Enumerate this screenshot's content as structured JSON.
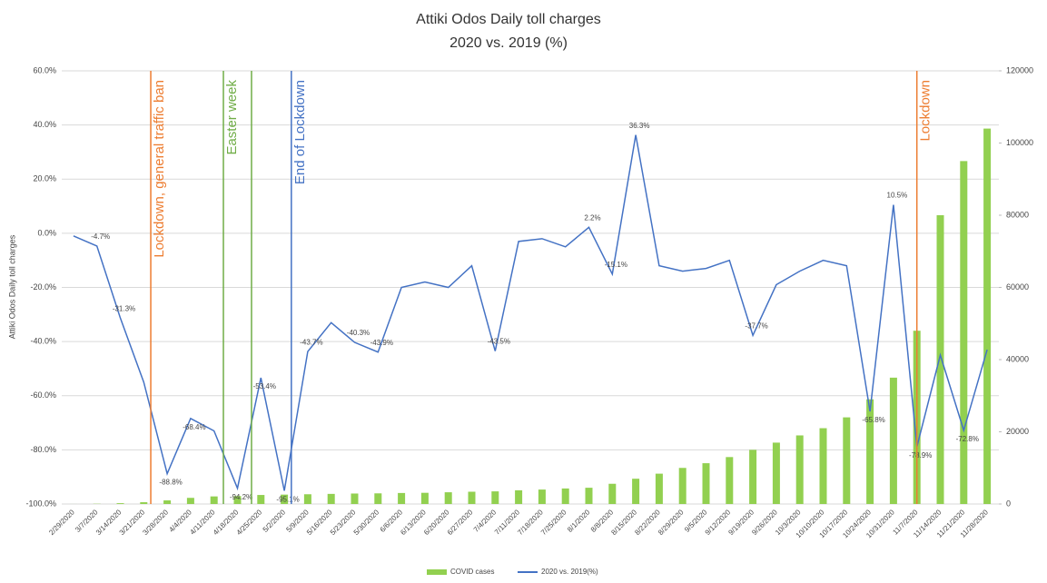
{
  "chart_data": {
    "type": "bar-line",
    "title": "Attiki Odos  Daily toll charges",
    "subtitle": "2020 vs. 2019 (%)",
    "y_label": "Attiki Odos  Daily toll charges",
    "categories": [
      "2/29/2020",
      "3/7/2020",
      "3/14/2020",
      "3/21/2020",
      "3/28/2020",
      "4/4/2020",
      "4/11/2020",
      "4/18/2020",
      "4/25/2020",
      "5/2/2020",
      "5/9/2020",
      "5/16/2020",
      "5/23/2020",
      "5/30/2020",
      "6/6/2020",
      "6/13/2020",
      "6/20/2020",
      "6/27/2020",
      "7/4/2020",
      "7/11/2020",
      "7/18/2020",
      "7/25/2020",
      "8/1/2020",
      "8/8/2020",
      "8/15/2020",
      "8/22/2020",
      "8/29/2020",
      "9/5/2020",
      "9/12/2020",
      "9/19/2020",
      "9/26/2020",
      "10/3/2020",
      "10/10/2020",
      "10/17/2020",
      "10/24/2020",
      "10/31/2020",
      "11/7/2020",
      "11/14/2020",
      "11/21/2020",
      "11/28/2020"
    ],
    "series": [
      {
        "name": "COVID cases",
        "color": "#92d050",
        "axis": "y2",
        "values": [
          7,
          66,
          228,
          495,
          1000,
          1700,
          2100,
          2200,
          2500,
          2600,
          2700,
          2800,
          2900,
          2950,
          3050,
          3100,
          3250,
          3400,
          3500,
          3800,
          4000,
          4300,
          4500,
          5600,
          7000,
          8400,
          10000,
          11300,
          13000,
          15000,
          17000,
          19000,
          21000,
          24000,
          29000,
          35000,
          48000,
          80000,
          95000,
          104000
        ]
      },
      {
        "name": "2020 vs. 2019(%)",
        "color": "#4472c4",
        "values": [
          -1,
          -4.7,
          -31.3,
          -55,
          -88.8,
          -68.4,
          -73,
          -94.2,
          -53.4,
          -95.1,
          -43.7,
          -33,
          -40.3,
          -43.9,
          -20,
          -18,
          -20,
          -12,
          -43.5,
          -3,
          -2,
          -5,
          2.2,
          -15.1,
          36.3,
          -12,
          -14,
          -13,
          -10,
          -37.7,
          -19,
          -14,
          -10,
          -12,
          -65.8,
          10.5,
          -78.9,
          -45,
          -72.8,
          -43
        ],
        "value_labels": [
          null,
          "-4.7%",
          "-31.3%",
          null,
          "-88.8%",
          "-68.4%",
          null,
          "-94.2%",
          "-53.4%",
          "-95.1%",
          "-43.7%",
          null,
          "-40.3%",
          "-43.9%",
          null,
          null,
          null,
          null,
          "-43.5%",
          null,
          null,
          null,
          "2.2%",
          "-15.1%",
          "36.3%",
          null,
          null,
          null,
          null,
          "-37.7%",
          null,
          null,
          null,
          null,
          "-65.8%",
          "10.5%",
          "-78.9%",
          null,
          "-72.8%",
          null
        ]
      }
    ],
    "ylim": [
      -100,
      60
    ],
    "yticks": [
      {
        "value": -100,
        "label": "-100.0%"
      },
      {
        "value": -80,
        "label": "-80.0%"
      },
      {
        "value": -60,
        "label": "-60.0%"
      },
      {
        "value": -40,
        "label": "-40.0%"
      },
      {
        "value": -20,
        "label": "-20.0%"
      },
      {
        "value": 0,
        "label": "0.0%"
      },
      {
        "value": 20,
        "label": "20.0%"
      },
      {
        "value": 40,
        "label": "40.0%"
      },
      {
        "value": 60,
        "label": "60.0%"
      }
    ],
    "y2lim": [
      0,
      120000
    ],
    "y2ticks": [
      0,
      20000,
      40000,
      60000,
      80000,
      100000,
      120000
    ],
    "grid": true,
    "legend": "bottom",
    "annotations": [
      {
        "text": "Lockdown, general traffic ban",
        "color": "#ed7d31"
      },
      {
        "text": "Easter week",
        "color": "#70ad47"
      },
      {
        "text": "End of Lockdown",
        "color": "#4472c4"
      },
      {
        "text": "Lockdown",
        "color": "#ed7d31"
      }
    ]
  }
}
